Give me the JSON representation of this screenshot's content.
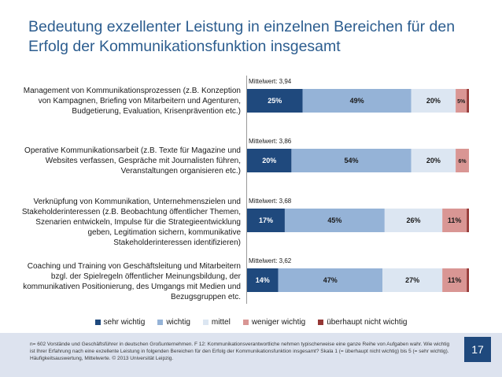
{
  "title": "Bedeutung exzellenter Leistung in einzelnen Bereichen für den Erfolg der Kommunikationsfunktion insgesamt",
  "colors": {
    "sehr_wichtig": "#1f497d",
    "wichtig": "#95b3d7",
    "mittel": "#dce6f2",
    "weniger_wichtig": "#d99694",
    "ueberhaupt_nicht_wichtig": "#953735"
  },
  "chart_data": {
    "type": "bar",
    "orientation": "horizontal-stacked",
    "xlim": [
      0,
      100
    ],
    "categories": [
      "Management von Kommunikationsprozessen (z.B. Konzeption von Kampagnen, Briefing von Mitarbeitern und Agenturen, Budgetierung, Evaluation, Krisenprävention etc.)",
      "Operative Kommunikationsarbeit (z.B. Texte für Magazine und Websites verfassen, Gespräche mit Journalisten führen, Veranstaltungen organisieren etc.)",
      "Verknüpfung von Kommunikation, Unternehmenszielen und Stakeholderinteressen (z.B. Beobachtung öffentlicher Themen, Szenarien entwickeln, Impulse für die Strategieentwicklung geben, Legitimation sichern, kommunikative Stakeholderinteressen identifizieren)",
      "Coaching und Training von Geschäftsleitung und Mitarbeitern bzgl. der Spielregeln öffentlicher Meinungsbildung, der kommunikativen Positionierung, des Umgangs mit Medien und Bezugsgruppen etc."
    ],
    "means": [
      "Mittelwert: 3,94",
      "Mittelwert: 3,86",
      "Mittelwert: 3,68",
      "Mittelwert: 3,62"
    ],
    "series": [
      {
        "name": "sehr wichtig",
        "values": [
          25,
          20,
          17,
          14
        ],
        "labels": [
          "25%",
          "20%",
          "17%",
          "14%"
        ]
      },
      {
        "name": "wichtig",
        "values": [
          49,
          54,
          45,
          47
        ],
        "labels": [
          "49%",
          "54%",
          "45%",
          "47%"
        ]
      },
      {
        "name": "mittel",
        "values": [
          20,
          20,
          26,
          27
        ],
        "labels": [
          "20%",
          "20%",
          "26%",
          "27%"
        ]
      },
      {
        "name": "weniger wichtig",
        "values": [
          5,
          6,
          11,
          11
        ],
        "labels": [
          "5%",
          "6%",
          "11%",
          "11%"
        ]
      },
      {
        "name": "überhaupt nicht wichtig",
        "values": [
          1,
          0,
          1,
          1
        ],
        "labels": [
          "",
          "",
          "",
          ""
        ]
      }
    ],
    "legend": "bottom"
  },
  "footer": {
    "text": "n= 602 Vorstände und Geschäftsführer in deutschen Großunternehmen. F 12: Kommunikationsverantwortliche nehmen typischerweise eine ganze Reihe von Aufgaben wahr. Wie wichtig ist Ihrer Erfahrung nach eine exzellente Leistung in folgenden Bereichen für den Erfolg der Kommunikationsfunktion insgesamt? Skala 1 (= überhaupt nicht wichtig) bis 5 (= sehr wichtig). Häufigkeitsauswertung, Mittelwerte. © 2013 Universität Leipzig.",
    "page_number": "17"
  }
}
